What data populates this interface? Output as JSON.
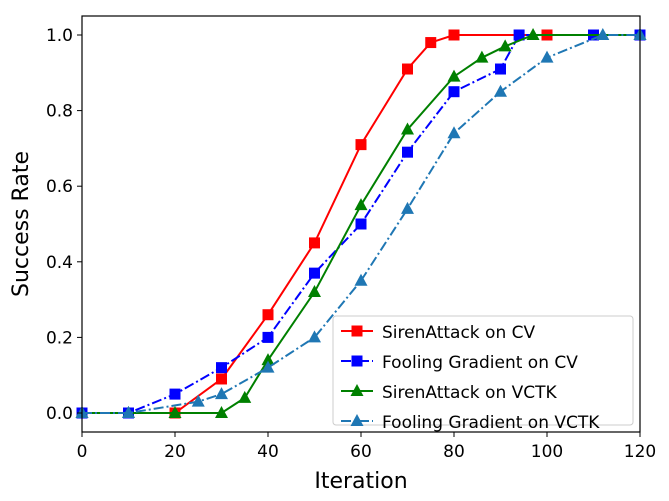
{
  "chart_data": {
    "type": "line",
    "title": "",
    "xlabel": "Iteration",
    "ylabel": "Success Rate",
    "xlim": [
      0,
      120
    ],
    "ylim": [
      -0.05,
      1.05
    ],
    "xticks": [
      "0",
      "20",
      "40",
      "60",
      "80",
      "100",
      "120"
    ],
    "yticks": [
      "0.0",
      "0.2",
      "0.4",
      "0.6",
      "0.8",
      "1.0"
    ],
    "grid": false,
    "legend_position": "bottom-right",
    "series": [
      {
        "name": "SirenAttack on CV",
        "color": "#ff0000",
        "marker": "square",
        "dash": "solid",
        "x": [
          0,
          10,
          20,
          30,
          40,
          50,
          60,
          70,
          75,
          80,
          100,
          110,
          120
        ],
        "y": [
          0,
          0,
          0,
          0.09,
          0.26,
          0.45,
          0.71,
          0.91,
          0.98,
          1.0,
          1.0,
          1.0,
          1.0
        ]
      },
      {
        "name": "Fooling Gradient on CV",
        "color": "#0000ff",
        "marker": "square",
        "dash": "dashdot",
        "x": [
          0,
          10,
          20,
          30,
          40,
          50,
          60,
          70,
          80,
          90,
          94,
          110,
          120
        ],
        "y": [
          0,
          0,
          0.05,
          0.12,
          0.2,
          0.37,
          0.5,
          0.69,
          0.85,
          0.91,
          1.0,
          1.0,
          1.0
        ]
      },
      {
        "name": "SirenAttack on VCTK",
        "color": "#008000",
        "marker": "triangle",
        "dash": "solid",
        "x": [
          0,
          10,
          20,
          30,
          35,
          40,
          50,
          60,
          70,
          80,
          86,
          91,
          97,
          120
        ],
        "y": [
          0,
          0,
          0,
          0,
          0.04,
          0.14,
          0.32,
          0.55,
          0.75,
          0.89,
          0.94,
          0.97,
          1.0,
          1.0
        ]
      },
      {
        "name": "Fooling Gradient on VCTK",
        "color": "#1f77b4",
        "marker": "triangle",
        "dash": "dashdot",
        "x": [
          0,
          10,
          25,
          30,
          40,
          50,
          60,
          70,
          80,
          90,
          100,
          112,
          120
        ],
        "y": [
          0,
          0,
          0.03,
          0.05,
          0.12,
          0.2,
          0.35,
          0.54,
          0.74,
          0.85,
          0.94,
          1.0,
          1.0
        ]
      }
    ]
  }
}
